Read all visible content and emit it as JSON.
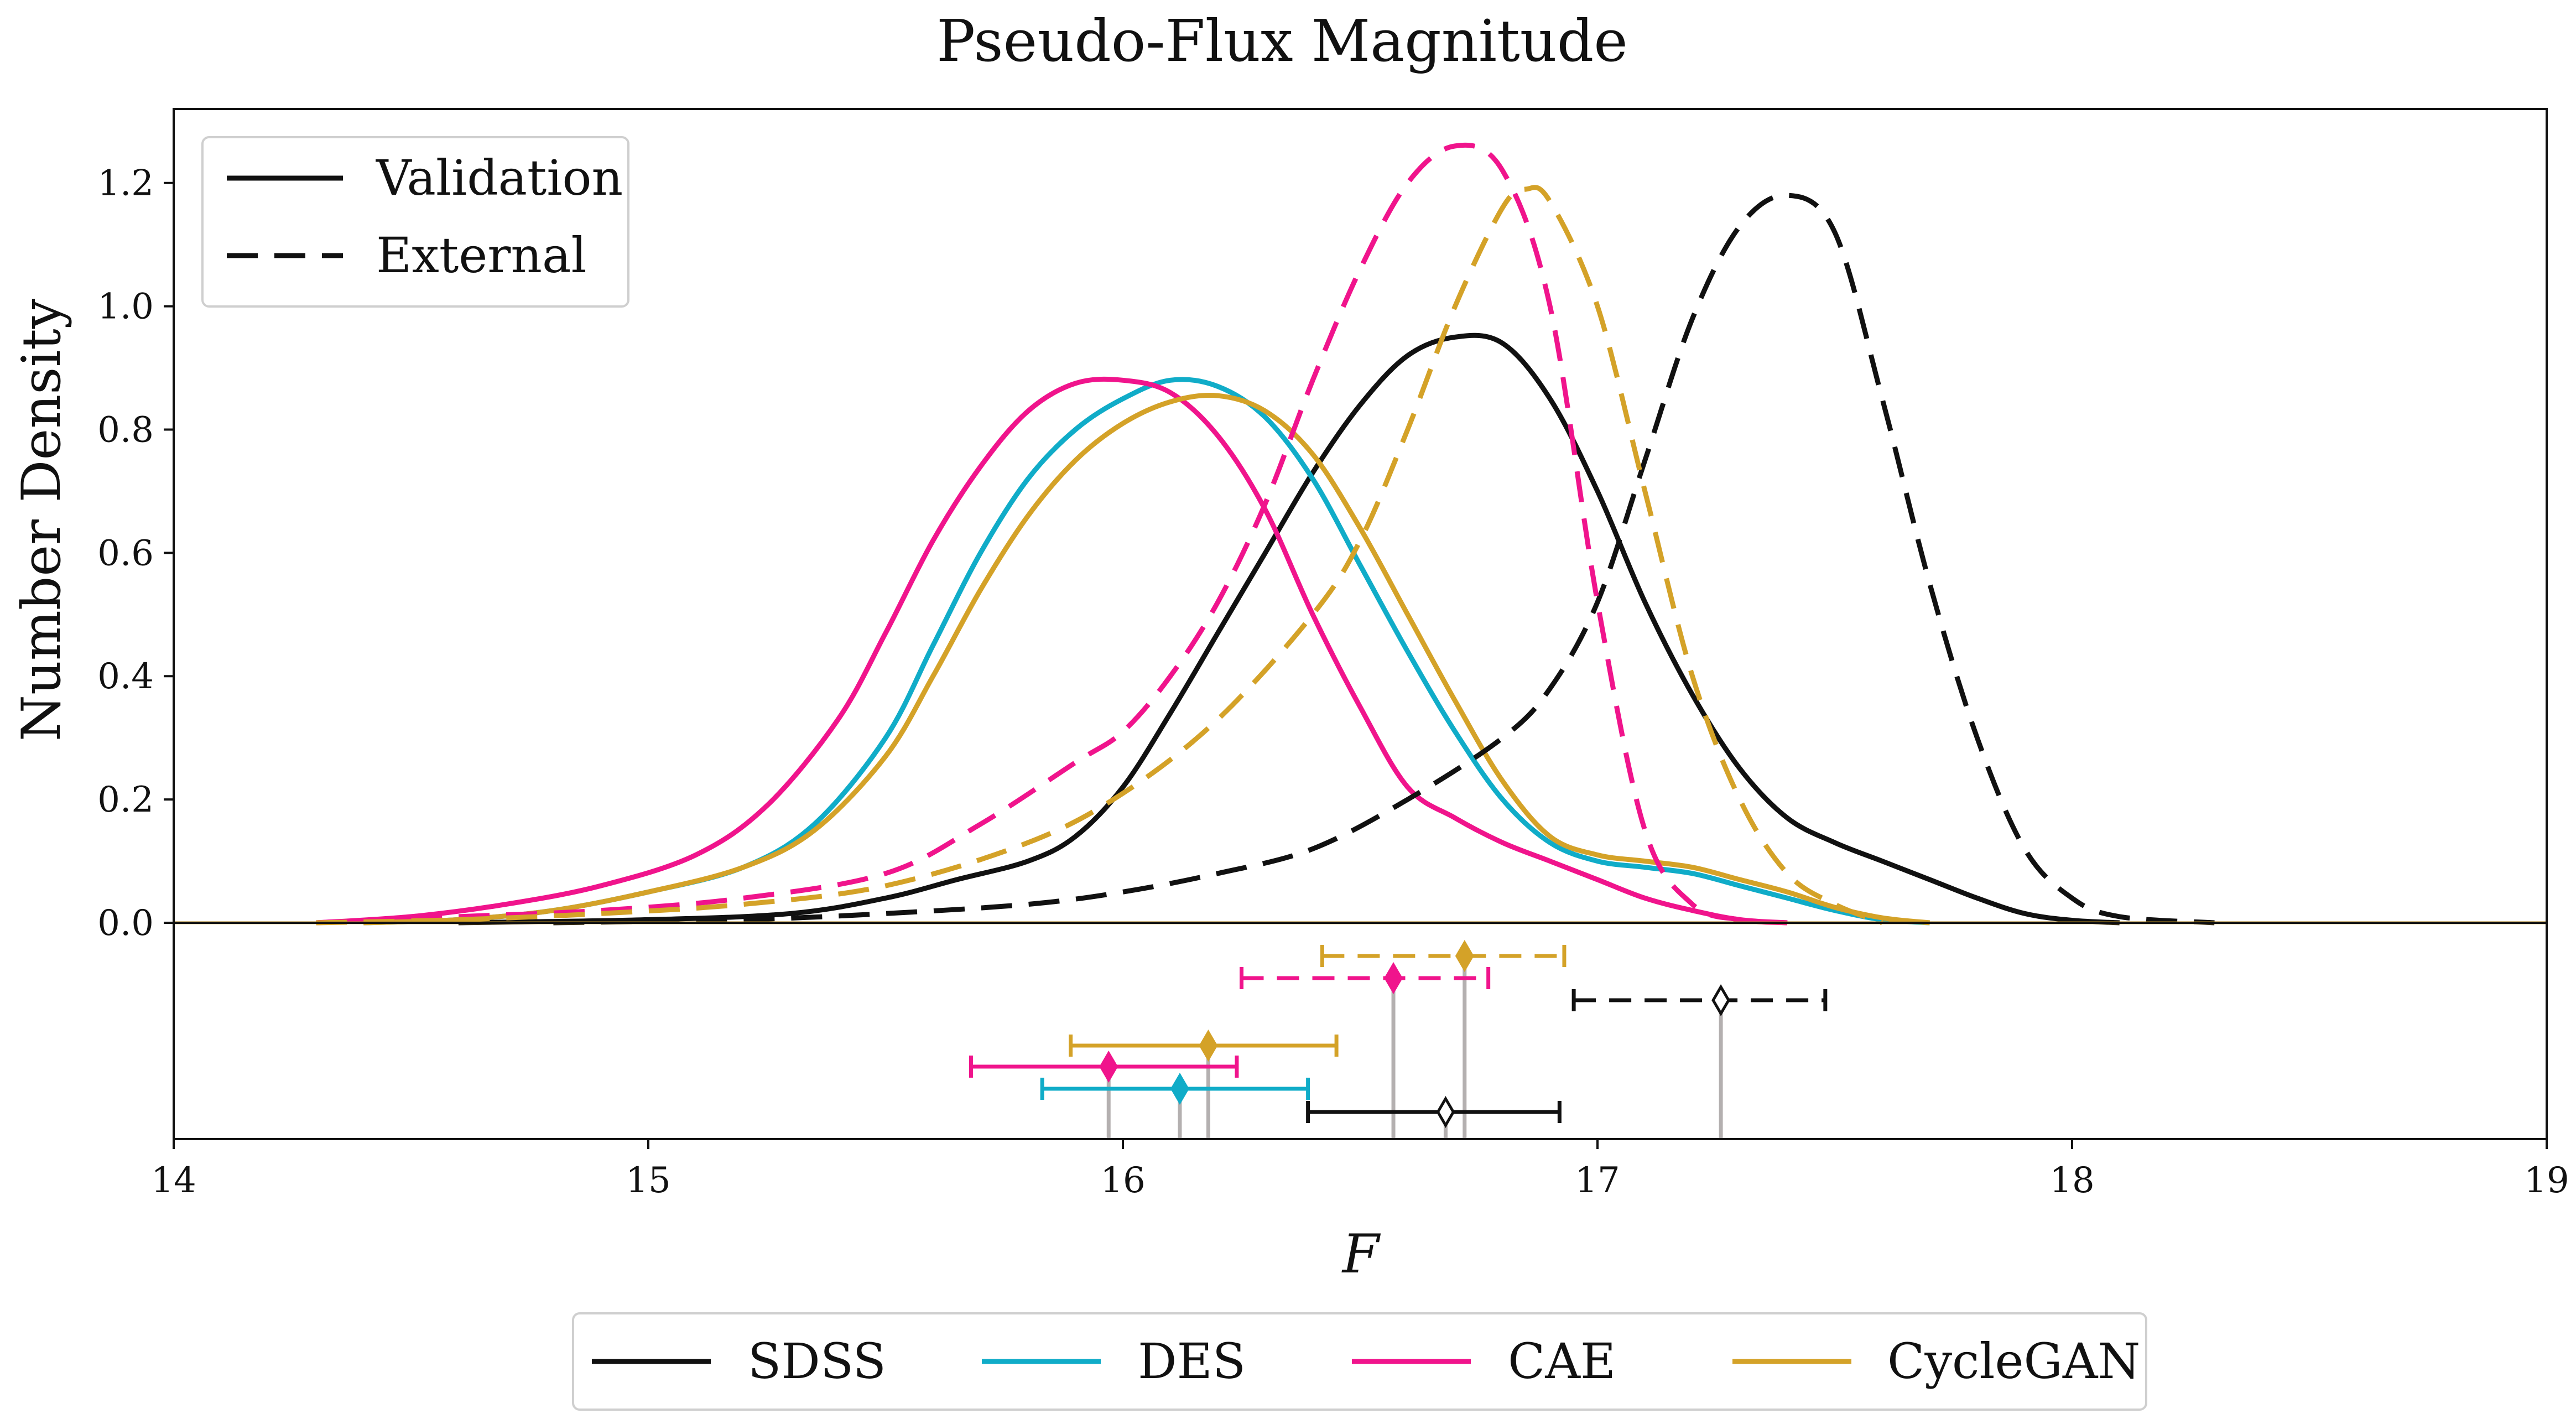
{
  "chart_data": {
    "type": "line",
    "title": "Pseudo-Flux Magnitude",
    "xlabel": "F",
    "ylabel": "Number Density",
    "xlim": [
      14,
      19
    ],
    "ylim": [
      0,
      1.32
    ],
    "x_ticks": [
      {
        "value": 14,
        "label": "14"
      },
      {
        "value": 15,
        "label": "15"
      },
      {
        "value": 16,
        "label": "16"
      },
      {
        "value": 17,
        "label": "17"
      },
      {
        "value": 18,
        "label": "18"
      },
      {
        "value": 19,
        "label": "19"
      }
    ],
    "y_ticks": [
      {
        "value": 0.0,
        "label": "0.0"
      },
      {
        "value": 0.2,
        "label": "0.2"
      },
      {
        "value": 0.4,
        "label": "0.4"
      },
      {
        "value": 0.6,
        "label": "0.6"
      },
      {
        "value": 0.8,
        "label": "0.8"
      },
      {
        "value": 1.0,
        "label": "1.0"
      },
      {
        "value": 1.2,
        "label": "1.2"
      }
    ],
    "grid": false,
    "style_legend": {
      "placement": "top-left",
      "entries": [
        {
          "label": "Validation",
          "dash": "solid"
        },
        {
          "label": "External",
          "dash": "dashed"
        }
      ]
    },
    "color_legend": {
      "placement": "bottom-center",
      "entries": [
        {
          "label": "SDSS",
          "color": "#111111"
        },
        {
          "label": "DES",
          "color": "#10acc8"
        },
        {
          "label": "CAE",
          "color": "#f0148c"
        },
        {
          "label": "CycleGAN",
          "color": "#d4a228"
        }
      ]
    },
    "series": [
      {
        "group": "SDSS",
        "type": "Validation",
        "color": "#111111",
        "dash": "solid",
        "points": [
          [
            14.6,
            0.0
          ],
          [
            15.0,
            0.005
          ],
          [
            15.3,
            0.015
          ],
          [
            15.5,
            0.04
          ],
          [
            15.65,
            0.07
          ],
          [
            15.8,
            0.1
          ],
          [
            15.9,
            0.14
          ],
          [
            16.0,
            0.22
          ],
          [
            16.1,
            0.34
          ],
          [
            16.2,
            0.47
          ],
          [
            16.3,
            0.6
          ],
          [
            16.4,
            0.73
          ],
          [
            16.5,
            0.84
          ],
          [
            16.6,
            0.92
          ],
          [
            16.7,
            0.95
          ],
          [
            16.8,
            0.94
          ],
          [
            16.9,
            0.85
          ],
          [
            17.0,
            0.7
          ],
          [
            17.1,
            0.52
          ],
          [
            17.2,
            0.37
          ],
          [
            17.3,
            0.25
          ],
          [
            17.4,
            0.17
          ],
          [
            17.5,
            0.13
          ],
          [
            17.6,
            0.1
          ],
          [
            17.7,
            0.07
          ],
          [
            17.8,
            0.04
          ],
          [
            17.9,
            0.015
          ],
          [
            18.0,
            0.004
          ],
          [
            18.1,
            0.0
          ]
        ]
      },
      {
        "group": "DES",
        "type": "Validation",
        "color": "#10acc8",
        "dash": "solid",
        "points": [
          [
            14.4,
            0.0
          ],
          [
            14.6,
            0.005
          ],
          [
            14.8,
            0.02
          ],
          [
            15.0,
            0.05
          ],
          [
            15.2,
            0.09
          ],
          [
            15.35,
            0.16
          ],
          [
            15.5,
            0.3
          ],
          [
            15.6,
            0.45
          ],
          [
            15.7,
            0.6
          ],
          [
            15.8,
            0.72
          ],
          [
            15.9,
            0.8
          ],
          [
            16.0,
            0.85
          ],
          [
            16.1,
            0.88
          ],
          [
            16.2,
            0.87
          ],
          [
            16.3,
            0.82
          ],
          [
            16.4,
            0.72
          ],
          [
            16.5,
            0.58
          ],
          [
            16.6,
            0.44
          ],
          [
            16.7,
            0.31
          ],
          [
            16.8,
            0.2
          ],
          [
            16.9,
            0.13
          ],
          [
            17.0,
            0.1
          ],
          [
            17.1,
            0.09
          ],
          [
            17.2,
            0.08
          ],
          [
            17.3,
            0.06
          ],
          [
            17.4,
            0.04
          ],
          [
            17.5,
            0.02
          ],
          [
            17.6,
            0.005
          ],
          [
            17.7,
            0.0
          ]
        ]
      },
      {
        "group": "CAE",
        "type": "Validation",
        "color": "#f0148c",
        "dash": "solid",
        "points": [
          [
            14.3,
            0.0
          ],
          [
            14.5,
            0.01
          ],
          [
            14.7,
            0.03
          ],
          [
            14.9,
            0.06
          ],
          [
            15.1,
            0.11
          ],
          [
            15.25,
            0.19
          ],
          [
            15.4,
            0.33
          ],
          [
            15.5,
            0.47
          ],
          [
            15.6,
            0.62
          ],
          [
            15.7,
            0.74
          ],
          [
            15.8,
            0.83
          ],
          [
            15.9,
            0.875
          ],
          [
            16.0,
            0.88
          ],
          [
            16.1,
            0.86
          ],
          [
            16.2,
            0.79
          ],
          [
            16.3,
            0.67
          ],
          [
            16.4,
            0.5
          ],
          [
            16.5,
            0.35
          ],
          [
            16.6,
            0.22
          ],
          [
            16.7,
            0.17
          ],
          [
            16.8,
            0.13
          ],
          [
            16.9,
            0.1
          ],
          [
            17.0,
            0.07
          ],
          [
            17.1,
            0.04
          ],
          [
            17.2,
            0.02
          ],
          [
            17.3,
            0.005
          ],
          [
            17.4,
            0.0
          ]
        ]
      },
      {
        "group": "CycleGAN",
        "type": "Validation",
        "color": "#d4a228",
        "dash": "solid",
        "points": [
          [
            14.4,
            0.0
          ],
          [
            14.6,
            0.005
          ],
          [
            14.8,
            0.02
          ],
          [
            15.0,
            0.05
          ],
          [
            15.2,
            0.09
          ],
          [
            15.35,
            0.15
          ],
          [
            15.5,
            0.27
          ],
          [
            15.6,
            0.4
          ],
          [
            15.7,
            0.54
          ],
          [
            15.8,
            0.66
          ],
          [
            15.9,
            0.75
          ],
          [
            16.0,
            0.81
          ],
          [
            16.1,
            0.845
          ],
          [
            16.2,
            0.855
          ],
          [
            16.3,
            0.83
          ],
          [
            16.4,
            0.76
          ],
          [
            16.5,
            0.64
          ],
          [
            16.6,
            0.5
          ],
          [
            16.7,
            0.36
          ],
          [
            16.8,
            0.23
          ],
          [
            16.9,
            0.14
          ],
          [
            17.0,
            0.11
          ],
          [
            17.1,
            0.1
          ],
          [
            17.2,
            0.09
          ],
          [
            17.3,
            0.07
          ],
          [
            17.4,
            0.05
          ],
          [
            17.5,
            0.025
          ],
          [
            17.6,
            0.008
          ],
          [
            17.7,
            0.0
          ]
        ]
      },
      {
        "group": "SDSS",
        "type": "External",
        "color": "#111111",
        "dash": "dashed",
        "points": [
          [
            14.8,
            0.0
          ],
          [
            15.2,
            0.005
          ],
          [
            15.5,
            0.015
          ],
          [
            15.8,
            0.03
          ],
          [
            16.0,
            0.05
          ],
          [
            16.2,
            0.08
          ],
          [
            16.4,
            0.12
          ],
          [
            16.6,
            0.2
          ],
          [
            16.8,
            0.3
          ],
          [
            16.9,
            0.38
          ],
          [
            17.0,
            0.52
          ],
          [
            17.1,
            0.75
          ],
          [
            17.2,
            0.98
          ],
          [
            17.3,
            1.13
          ],
          [
            17.4,
            1.18
          ],
          [
            17.5,
            1.12
          ],
          [
            17.6,
            0.85
          ],
          [
            17.7,
            0.55
          ],
          [
            17.8,
            0.3
          ],
          [
            17.9,
            0.12
          ],
          [
            18.0,
            0.04
          ],
          [
            18.1,
            0.01
          ],
          [
            18.3,
            0.0
          ]
        ]
      },
      {
        "group": "CAE",
        "type": "External",
        "color": "#f0148c",
        "dash": "dashed",
        "points": [
          [
            14.3,
            0.0
          ],
          [
            14.6,
            0.01
          ],
          [
            14.9,
            0.02
          ],
          [
            15.2,
            0.04
          ],
          [
            15.5,
            0.08
          ],
          [
            15.7,
            0.16
          ],
          [
            15.9,
            0.26
          ],
          [
            16.0,
            0.31
          ],
          [
            16.1,
            0.4
          ],
          [
            16.2,
            0.52
          ],
          [
            16.3,
            0.68
          ],
          [
            16.4,
            0.88
          ],
          [
            16.5,
            1.06
          ],
          [
            16.6,
            1.2
          ],
          [
            16.7,
            1.26
          ],
          [
            16.8,
            1.22
          ],
          [
            16.9,
            1.0
          ],
          [
            17.0,
            0.52
          ],
          [
            17.1,
            0.15
          ],
          [
            17.2,
            0.03
          ],
          [
            17.3,
            0.005
          ],
          [
            17.4,
            0.0
          ]
        ]
      },
      {
        "group": "CycleGAN",
        "type": "External",
        "color": "#d4a228",
        "dash": "dashed",
        "points": [
          [
            14.3,
            0.0
          ],
          [
            14.6,
            0.005
          ],
          [
            14.9,
            0.015
          ],
          [
            15.2,
            0.03
          ],
          [
            15.5,
            0.06
          ],
          [
            15.8,
            0.13
          ],
          [
            16.0,
            0.21
          ],
          [
            16.2,
            0.33
          ],
          [
            16.4,
            0.5
          ],
          [
            16.5,
            0.62
          ],
          [
            16.6,
            0.8
          ],
          [
            16.7,
            1.0
          ],
          [
            16.8,
            1.16
          ],
          [
            16.85,
            1.19
          ],
          [
            16.9,
            1.17
          ],
          [
            17.0,
            1.0
          ],
          [
            17.1,
            0.7
          ],
          [
            17.2,
            0.4
          ],
          [
            17.3,
            0.2
          ],
          [
            17.4,
            0.08
          ],
          [
            17.5,
            0.03
          ],
          [
            17.6,
            0.0
          ]
        ]
      }
    ],
    "error_bars": [
      {
        "group": "CycleGAN",
        "type": "External",
        "color": "#d4a228",
        "dash": "dashed",
        "center": 16.72,
        "low": 16.42,
        "high": 16.93,
        "marker": "filled-diamond",
        "row": 1
      },
      {
        "group": "CAE",
        "type": "External",
        "color": "#f0148c",
        "dash": "dashed",
        "center": 16.57,
        "low": 16.25,
        "high": 16.77,
        "marker": "filled-diamond",
        "row": 2
      },
      {
        "group": "SDSS",
        "type": "External",
        "color": "#111111",
        "dash": "dashed",
        "center": 17.26,
        "low": 16.95,
        "high": 17.48,
        "marker": "open-diamond",
        "row": 3
      },
      {
        "group": "CycleGAN",
        "type": "Validation",
        "color": "#d4a228",
        "dash": "solid",
        "center": 16.18,
        "low": 15.89,
        "high": 16.45,
        "marker": "filled-diamond",
        "row": 4
      },
      {
        "group": "CAE",
        "type": "Validation",
        "color": "#f0148c",
        "dash": "solid",
        "center": 15.97,
        "low": 15.68,
        "high": 16.24,
        "marker": "filled-diamond",
        "row": 5
      },
      {
        "group": "DES",
        "type": "Validation",
        "color": "#10acc8",
        "dash": "solid",
        "center": 16.12,
        "low": 15.83,
        "high": 16.39,
        "marker": "filled-diamond",
        "row": 6
      },
      {
        "group": "SDSS",
        "type": "Validation",
        "color": "#111111",
        "dash": "solid",
        "center": 16.68,
        "low": 16.39,
        "high": 16.92,
        "marker": "open-diamond",
        "row": 7
      }
    ]
  }
}
